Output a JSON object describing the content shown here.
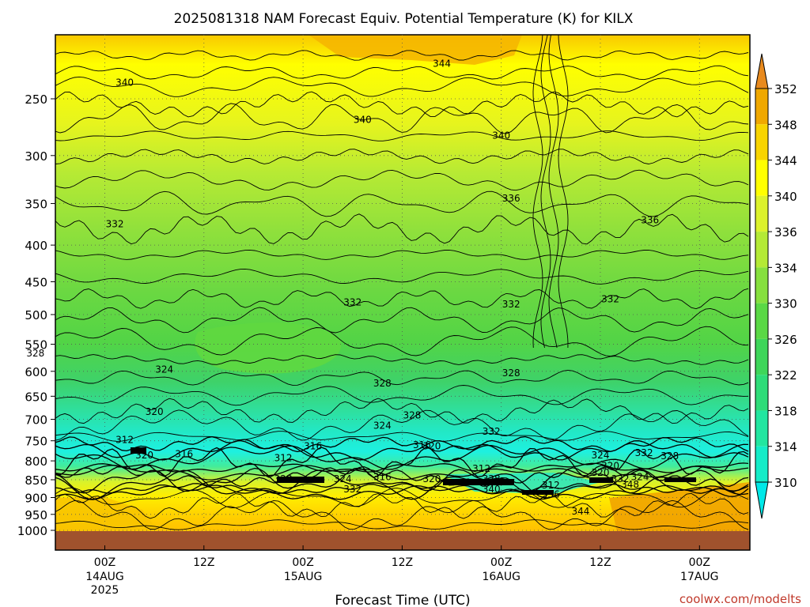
{
  "chart_data": {
    "type": "heatmap",
    "title": "2025081318 NAM Forecast Equiv. Potential Temperature (K) for KILX",
    "xlabel": "Forecast Time (UTC)",
    "ylabel": "",
    "y_axis": {
      "scale": "pressure (log)",
      "ticks": [
        250,
        300,
        350,
        400,
        450,
        500,
        550,
        600,
        650,
        700,
        750,
        800,
        850,
        900,
        950,
        1000
      ],
      "ylim": [
        1000,
        200
      ],
      "grid": true
    },
    "x_axis": {
      "ticks": [
        {
          "label": "00Z",
          "date": "14AUG",
          "year": "2025"
        },
        {
          "label": "12Z",
          "date": "",
          "year": ""
        },
        {
          "label": "00Z",
          "date": "15AUG",
          "year": ""
        },
        {
          "label": "12Z",
          "date": "",
          "year": ""
        },
        {
          "label": "00Z",
          "date": "16AUG",
          "year": ""
        },
        {
          "label": "12Z",
          "date": "",
          "year": ""
        },
        {
          "label": "00Z",
          "date": "17AUG",
          "year": ""
        }
      ],
      "grid": true
    },
    "colorbar": {
      "levels": [
        310,
        314,
        318,
        322,
        326,
        330,
        334,
        336,
        340,
        344,
        348,
        352
      ],
      "colors": [
        "#00e8e8",
        "#14ecc8",
        "#22e6a0",
        "#2edc78",
        "#3ed65a",
        "#5ad845",
        "#86e03e",
        "#b4ea36",
        "#dcf22c",
        "#ffff00",
        "#f8d400",
        "#f0a800",
        "#e88a1e"
      ]
    },
    "contour_labels": [
      {
        "text": "344",
        "t": -3,
        "p": 218
      },
      {
        "text": "344",
        "t": 1.7,
        "p": 224
      },
      {
        "text": "340",
        "t": 0.1,
        "p": 238
      },
      {
        "text": "340",
        "t": 1.3,
        "p": 268
      },
      {
        "text": "340",
        "t": 2.0,
        "p": 282
      },
      {
        "text": "336",
        "t": 2.05,
        "p": 345
      },
      {
        "text": "336",
        "t": 2.75,
        "p": 370
      },
      {
        "text": "332",
        "t": 0.05,
        "p": 375
      },
      {
        "text": "332",
        "t": 1.25,
        "p": 482
      },
      {
        "text": "332",
        "t": 2.05,
        "p": 485
      },
      {
        "text": "332",
        "t": 2.55,
        "p": 477
      },
      {
        "text": "328",
        "t": -0.35,
        "p": 568
      },
      {
        "text": "324",
        "t": 0.3,
        "p": 598
      },
      {
        "text": "328",
        "t": 1.4,
        "p": 625
      },
      {
        "text": "328",
        "t": 2.05,
        "p": 605
      },
      {
        "text": "320",
        "t": 0.25,
        "p": 685
      },
      {
        "text": "328",
        "t": 1.55,
        "p": 693
      },
      {
        "text": "324",
        "t": 1.4,
        "p": 716
      },
      {
        "text": "332",
        "t": 1.95,
        "p": 730
      },
      {
        "text": "312",
        "t": 0.1,
        "p": 750
      },
      {
        "text": "316",
        "t": 1.05,
        "p": 765
      },
      {
        "text": "316",
        "t": 1.6,
        "p": 762
      },
      {
        "text": "320",
        "t": 1.65,
        "p": 765
      },
      {
        "text": "320",
        "t": 0.2,
        "p": 788
      },
      {
        "text": "316",
        "t": 0.4,
        "p": 785
      },
      {
        "text": "312",
        "t": 0.9,
        "p": 795
      },
      {
        "text": "324",
        "t": 2.5,
        "p": 788
      },
      {
        "text": "332",
        "t": 2.72,
        "p": 782
      },
      {
        "text": "328",
        "t": 2.85,
        "p": 790
      },
      {
        "text": "320",
        "t": 2.55,
        "p": 815
      },
      {
        "text": "312",
        "t": 1.9,
        "p": 822
      },
      {
        "text": "320",
        "t": 2.5,
        "p": 833
      },
      {
        "text": "328",
        "t": 0.9,
        "p": 850
      },
      {
        "text": "324",
        "t": 1.2,
        "p": 850
      },
      {
        "text": "316",
        "t": 1.4,
        "p": 845
      },
      {
        "text": "320",
        "t": 1.65,
        "p": 850
      },
      {
        "text": "328",
        "t": 1.95,
        "p": 850
      },
      {
        "text": "332",
        "t": 2.6,
        "p": 850
      },
      {
        "text": "324",
        "t": 2.7,
        "p": 845
      },
      {
        "text": "312",
        "t": 2.25,
        "p": 868
      },
      {
        "text": "348",
        "t": 2.65,
        "p": 865
      },
      {
        "text": "332",
        "t": 1.25,
        "p": 878
      },
      {
        "text": "340",
        "t": 1.95,
        "p": 878
      },
      {
        "text": "336",
        "t": 2.25,
        "p": 893
      },
      {
        "text": "344",
        "t": 2.4,
        "p": 943
      }
    ],
    "credit": "coolwx.com/modelts"
  }
}
